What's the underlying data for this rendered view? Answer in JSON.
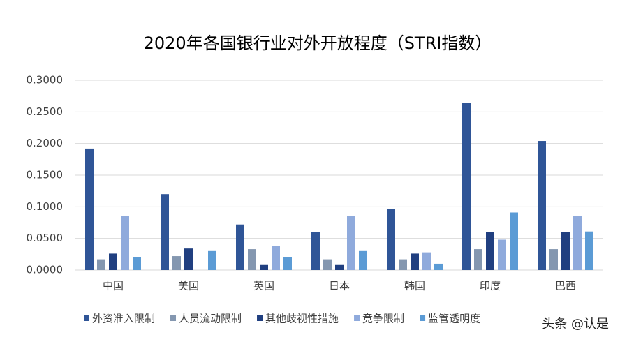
{
  "chart_data": {
    "type": "bar",
    "title": "2020年各国银行业对外开放程度（STRI指数）",
    "categories": [
      "中国",
      "美国",
      "英国",
      "日本",
      "韩国",
      "印度",
      "巴西"
    ],
    "series": [
      {
        "name": "外资准入限制",
        "color": "#2f5597",
        "values": [
          0.192,
          0.12,
          0.072,
          0.06,
          0.096,
          0.264,
          0.204
        ]
      },
      {
        "name": "人员流动限制",
        "color": "#8497b0",
        "values": [
          0.017,
          0.022,
          0.033,
          0.017,
          0.017,
          0.033,
          0.033
        ]
      },
      {
        "name": "其他歧视性措施",
        "color": "#203f80",
        "values": [
          0.026,
          0.034,
          0.008,
          0.008,
          0.026,
          0.06,
          0.06
        ]
      },
      {
        "name": "竞争限制",
        "color": "#8faadc",
        "values": [
          0.086,
          0,
          0.038,
          0.086,
          0.028,
          0.048,
          0.086
        ]
      },
      {
        "name": "监管透明度",
        "color": "#5b9bd5",
        "values": [
          0.02,
          0.03,
          0.02,
          0.03,
          0.01,
          0.091,
          0.061
        ]
      }
    ],
    "ylim": [
      0,
      0.3
    ],
    "yticks": [
      {
        "value": 0,
        "label": "0.0000"
      },
      {
        "value": 0.05,
        "label": "0.0500"
      },
      {
        "value": 0.1,
        "label": "0.1000"
      },
      {
        "value": 0.15,
        "label": "0.1500"
      },
      {
        "value": 0.2,
        "label": "0.2000"
      },
      {
        "value": 0.25,
        "label": "0.2500"
      },
      {
        "value": 0.3,
        "label": "0.3000"
      }
    ],
    "grid": true,
    "legend": "bottom",
    "watermark": "头条 @认是"
  }
}
